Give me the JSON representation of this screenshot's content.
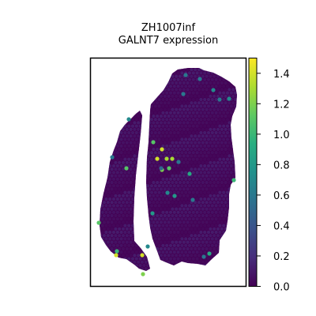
{
  "chart_data": {
    "type": "scatter",
    "title": "ZH1007inf",
    "subtitle": "GALNT7 expression",
    "xlabel": "",
    "ylabel": "",
    "colorbar": {
      "colormap": "viridis",
      "range": [
        0.0,
        1.5
      ],
      "ticks": [
        0.0,
        0.2,
        0.4,
        0.6,
        0.8,
        1.0,
        1.2,
        1.4
      ],
      "tick_labels": [
        "0.0",
        "0.2",
        "0.4",
        "0.6",
        "0.8",
        "1.0",
        "1.2",
        "1.4"
      ]
    },
    "highlighted_spots": {
      "x": [
        205,
        199,
        211,
        218,
        205,
        180,
        147,
        214,
        160,
        296,
        125,
        148,
        194,
        181,
        240,
        221,
        265,
        270,
        187,
        235,
        212,
        290,
        253,
        226,
        278,
        142,
        193,
        258,
        204,
        163,
        232,
        244
      ],
      "y": [
        189,
        201,
        201,
        201,
        215,
        323,
        323,
        213,
        213,
        228,
        282,
        318,
        180,
        347,
        220,
        248,
        321,
        114,
        312,
        95,
        244,
        125,
        100,
        205,
        126,
        199,
        270,
        325,
        213,
        151,
        119,
        253
      ],
      "value": [
        1.4,
        1.4,
        1.3,
        1.3,
        1.2,
        1.4,
        1.4,
        1.1,
        1.1,
        1.0,
        1.1,
        1.0,
        1.1,
        1.2,
        0.9,
        0.8,
        0.9,
        0.7,
        0.7,
        0.6,
        0.7,
        0.7,
        0.6,
        0.6,
        0.6,
        0.6,
        0.8,
        0.6,
        0.5,
        0.7,
        0.6,
        0.6
      ]
    },
    "background_value": 0.03
  }
}
